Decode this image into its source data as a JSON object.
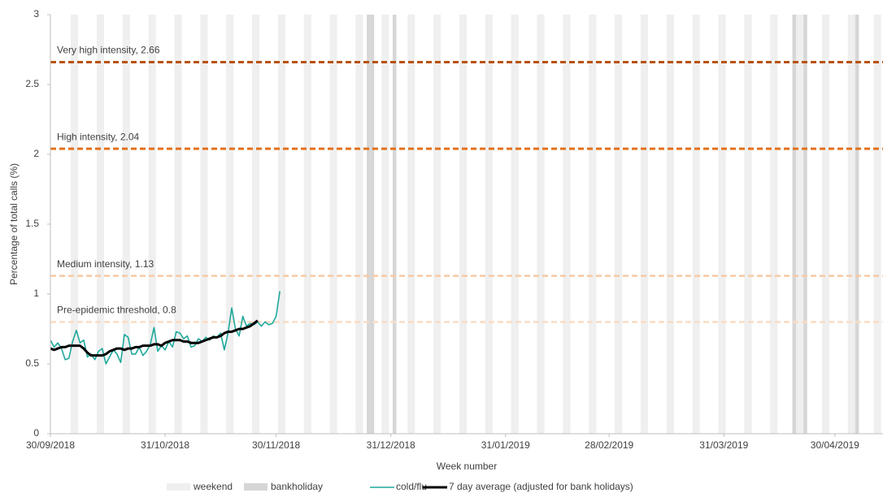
{
  "chart_data": {
    "type": "line",
    "x_title": "Week number",
    "y_title": "Percentage of total calls (%)",
    "xlim": [
      "2018-09-30",
      "2019-05-13"
    ],
    "xticks": [
      {
        "value": "2018-09-30",
        "label": "30/09/2018"
      },
      {
        "value": "2018-10-31",
        "label": "31/10/2018"
      },
      {
        "value": "2018-11-30",
        "label": "30/11/2018"
      },
      {
        "value": "2018-12-31",
        "label": "31/12/2018"
      },
      {
        "value": "2019-01-31",
        "label": "31/01/2019"
      },
      {
        "value": "2019-02-28",
        "label": "28/02/2019"
      },
      {
        "value": "2019-03-31",
        "label": "31/03/2019"
      },
      {
        "value": "2019-04-30",
        "label": "30/04/2019"
      }
    ],
    "ylim": [
      0,
      3
    ],
    "yticks": [
      0,
      0.5,
      1,
      1.5,
      2,
      2.5,
      3
    ],
    "thresholds": [
      {
        "label": "Very high intensity, 2.66",
        "value": 2.66,
        "color": "#b8520f"
      },
      {
        "label": "High intensity, 2.04",
        "value": 2.04,
        "color": "#e2711d"
      },
      {
        "label": "Medium intensity, 1.13",
        "value": 1.13,
        "color": "#f8c9a4"
      },
      {
        "label": "Pre-epidemic threshold, 0.8",
        "value": 0.8,
        "color": "#fadcc4"
      }
    ],
    "x": [
      "2018-09-30",
      "2018-10-01",
      "2018-10-02",
      "2018-10-03",
      "2018-10-04",
      "2018-10-05",
      "2018-10-06",
      "2018-10-07",
      "2018-10-08",
      "2018-10-09",
      "2018-10-10",
      "2018-10-11",
      "2018-10-12",
      "2018-10-13",
      "2018-10-14",
      "2018-10-15",
      "2018-10-16",
      "2018-10-17",
      "2018-10-18",
      "2018-10-19",
      "2018-10-20",
      "2018-10-21",
      "2018-10-22",
      "2018-10-23",
      "2018-10-24",
      "2018-10-25",
      "2018-10-26",
      "2018-10-27",
      "2018-10-28",
      "2018-10-29",
      "2018-10-30",
      "2018-10-31",
      "2018-11-01",
      "2018-11-02",
      "2018-11-03",
      "2018-11-04",
      "2018-11-05",
      "2018-11-06",
      "2018-11-07",
      "2018-11-08",
      "2018-11-09",
      "2018-11-10",
      "2018-11-11",
      "2018-11-12",
      "2018-11-13",
      "2018-11-14",
      "2018-11-15",
      "2018-11-16",
      "2018-11-17",
      "2018-11-18",
      "2018-11-19",
      "2018-11-20",
      "2018-11-21",
      "2018-11-22",
      "2018-11-23",
      "2018-11-24",
      "2018-11-25",
      "2018-11-26",
      "2018-11-27",
      "2018-11-28",
      "2018-11-29",
      "2018-11-30",
      "2018-12-01"
    ],
    "series": [
      {
        "name": "weekend",
        "type": "band",
        "color": "#efefef",
        "x": [
          "2018-10-06",
          "2018-10-07",
          "2018-10-13",
          "2018-10-14",
          "2018-10-20",
          "2018-10-21",
          "2018-10-27",
          "2018-10-28",
          "2018-11-03",
          "2018-11-04",
          "2018-11-10",
          "2018-11-11",
          "2018-11-17",
          "2018-11-18",
          "2018-11-24",
          "2018-11-25",
          "2018-12-01",
          "2018-12-02",
          "2018-12-08",
          "2018-12-09",
          "2018-12-15",
          "2018-12-16",
          "2018-12-22",
          "2018-12-23",
          "2018-12-29",
          "2018-12-30",
          "2019-01-05",
          "2019-01-06",
          "2019-01-12",
          "2019-01-13",
          "2019-01-19",
          "2019-01-20",
          "2019-01-26",
          "2019-01-27",
          "2019-02-02",
          "2019-02-03",
          "2019-02-09",
          "2019-02-10",
          "2019-02-16",
          "2019-02-17",
          "2019-02-23",
          "2019-02-24",
          "2019-03-02",
          "2019-03-03",
          "2019-03-09",
          "2019-03-10",
          "2019-03-16",
          "2019-03-17",
          "2019-03-23",
          "2019-03-24",
          "2019-03-30",
          "2019-03-31",
          "2019-04-06",
          "2019-04-07",
          "2019-04-13",
          "2019-04-14",
          "2019-04-20",
          "2019-04-21",
          "2019-04-27",
          "2019-04-28",
          "2019-05-04",
          "2019-05-05",
          "2019-05-11",
          "2019-05-12"
        ]
      },
      {
        "name": "bankholiday",
        "type": "band",
        "color": "#d6d6d6",
        "x": [
          "2018-12-25",
          "2018-12-26",
          "2019-01-01",
          "2019-04-19",
          "2019-04-22",
          "2019-05-06"
        ]
      },
      {
        "name": "cold/flu",
        "type": "line",
        "color": "#1ea89b",
        "values": [
          0.67,
          0.62,
          0.65,
          0.61,
          0.53,
          0.54,
          0.66,
          0.74,
          0.65,
          0.67,
          0.55,
          0.57,
          0.53,
          0.59,
          0.61,
          0.5,
          0.55,
          0.6,
          0.57,
          0.51,
          0.71,
          0.69,
          0.57,
          0.57,
          0.62,
          0.56,
          0.59,
          0.64,
          0.76,
          0.59,
          0.63,
          0.6,
          0.66,
          0.62,
          0.73,
          0.72,
          0.68,
          0.7,
          0.62,
          0.63,
          0.68,
          0.66,
          0.69,
          0.67,
          0.7,
          0.69,
          0.72,
          0.6,
          0.72,
          0.9,
          0.75,
          0.7,
          0.84,
          0.77,
          0.79,
          0.78,
          0.8,
          0.77,
          0.8,
          0.78,
          0.79,
          0.84,
          1.02
        ]
      },
      {
        "name": "7 day average (adjusted for bank holidays)",
        "type": "line",
        "color": "#000000",
        "values": [
          0.61,
          0.6,
          0.61,
          0.62,
          0.62,
          0.63,
          0.63,
          0.63,
          0.63,
          0.61,
          0.58,
          0.56,
          0.56,
          0.56,
          0.56,
          0.57,
          0.59,
          0.6,
          0.61,
          0.61,
          0.6,
          0.61,
          0.61,
          0.62,
          0.62,
          0.63,
          0.63,
          0.63,
          0.64,
          0.64,
          0.63,
          0.65,
          0.66,
          0.67,
          0.67,
          0.67,
          0.66,
          0.66,
          0.65,
          0.65,
          0.65,
          0.66,
          0.67,
          0.68,
          0.69,
          0.69,
          0.7,
          0.72,
          0.73,
          0.73,
          0.74,
          0.75,
          0.75,
          0.76,
          0.77,
          0.79,
          0.81,
          null,
          null,
          null,
          null,
          null,
          null
        ]
      }
    ]
  }
}
